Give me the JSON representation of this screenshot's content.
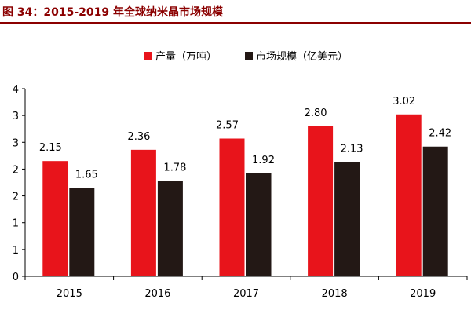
{
  "title": "图 34：2015-2019 年全球纳米晶市场规模",
  "chart_data": {
    "type": "bar",
    "title": "",
    "xlabel": "",
    "ylabel": "",
    "categories": [
      "2015",
      "2016",
      "2017",
      "2018",
      "2019"
    ],
    "series": [
      {
        "name": "产量（万吨）",
        "color": "#e8141b",
        "values": [
          2.15,
          2.36,
          2.57,
          2.8,
          3.02
        ],
        "labels": [
          "2.15",
          "2.36",
          "2.57",
          "2.80",
          "3.02"
        ]
      },
      {
        "name": "市场规模（亿美元）",
        "color": "#231815",
        "values": [
          1.65,
          1.78,
          1.92,
          2.13,
          2.42
        ],
        "labels": [
          "1.65",
          "1.78",
          "1.92",
          "2.13",
          "2.42"
        ]
      }
    ],
    "ylim": [
      0,
      3.5
    ],
    "yticks": [
      0,
      0.5,
      1,
      1.5,
      2,
      2.5,
      3,
      3.5
    ],
    "ytick_labels": [
      "0",
      "1",
      "1",
      "2",
      "2",
      "3",
      "3",
      "4"
    ],
    "grid": false,
    "legend": "top-center"
  }
}
